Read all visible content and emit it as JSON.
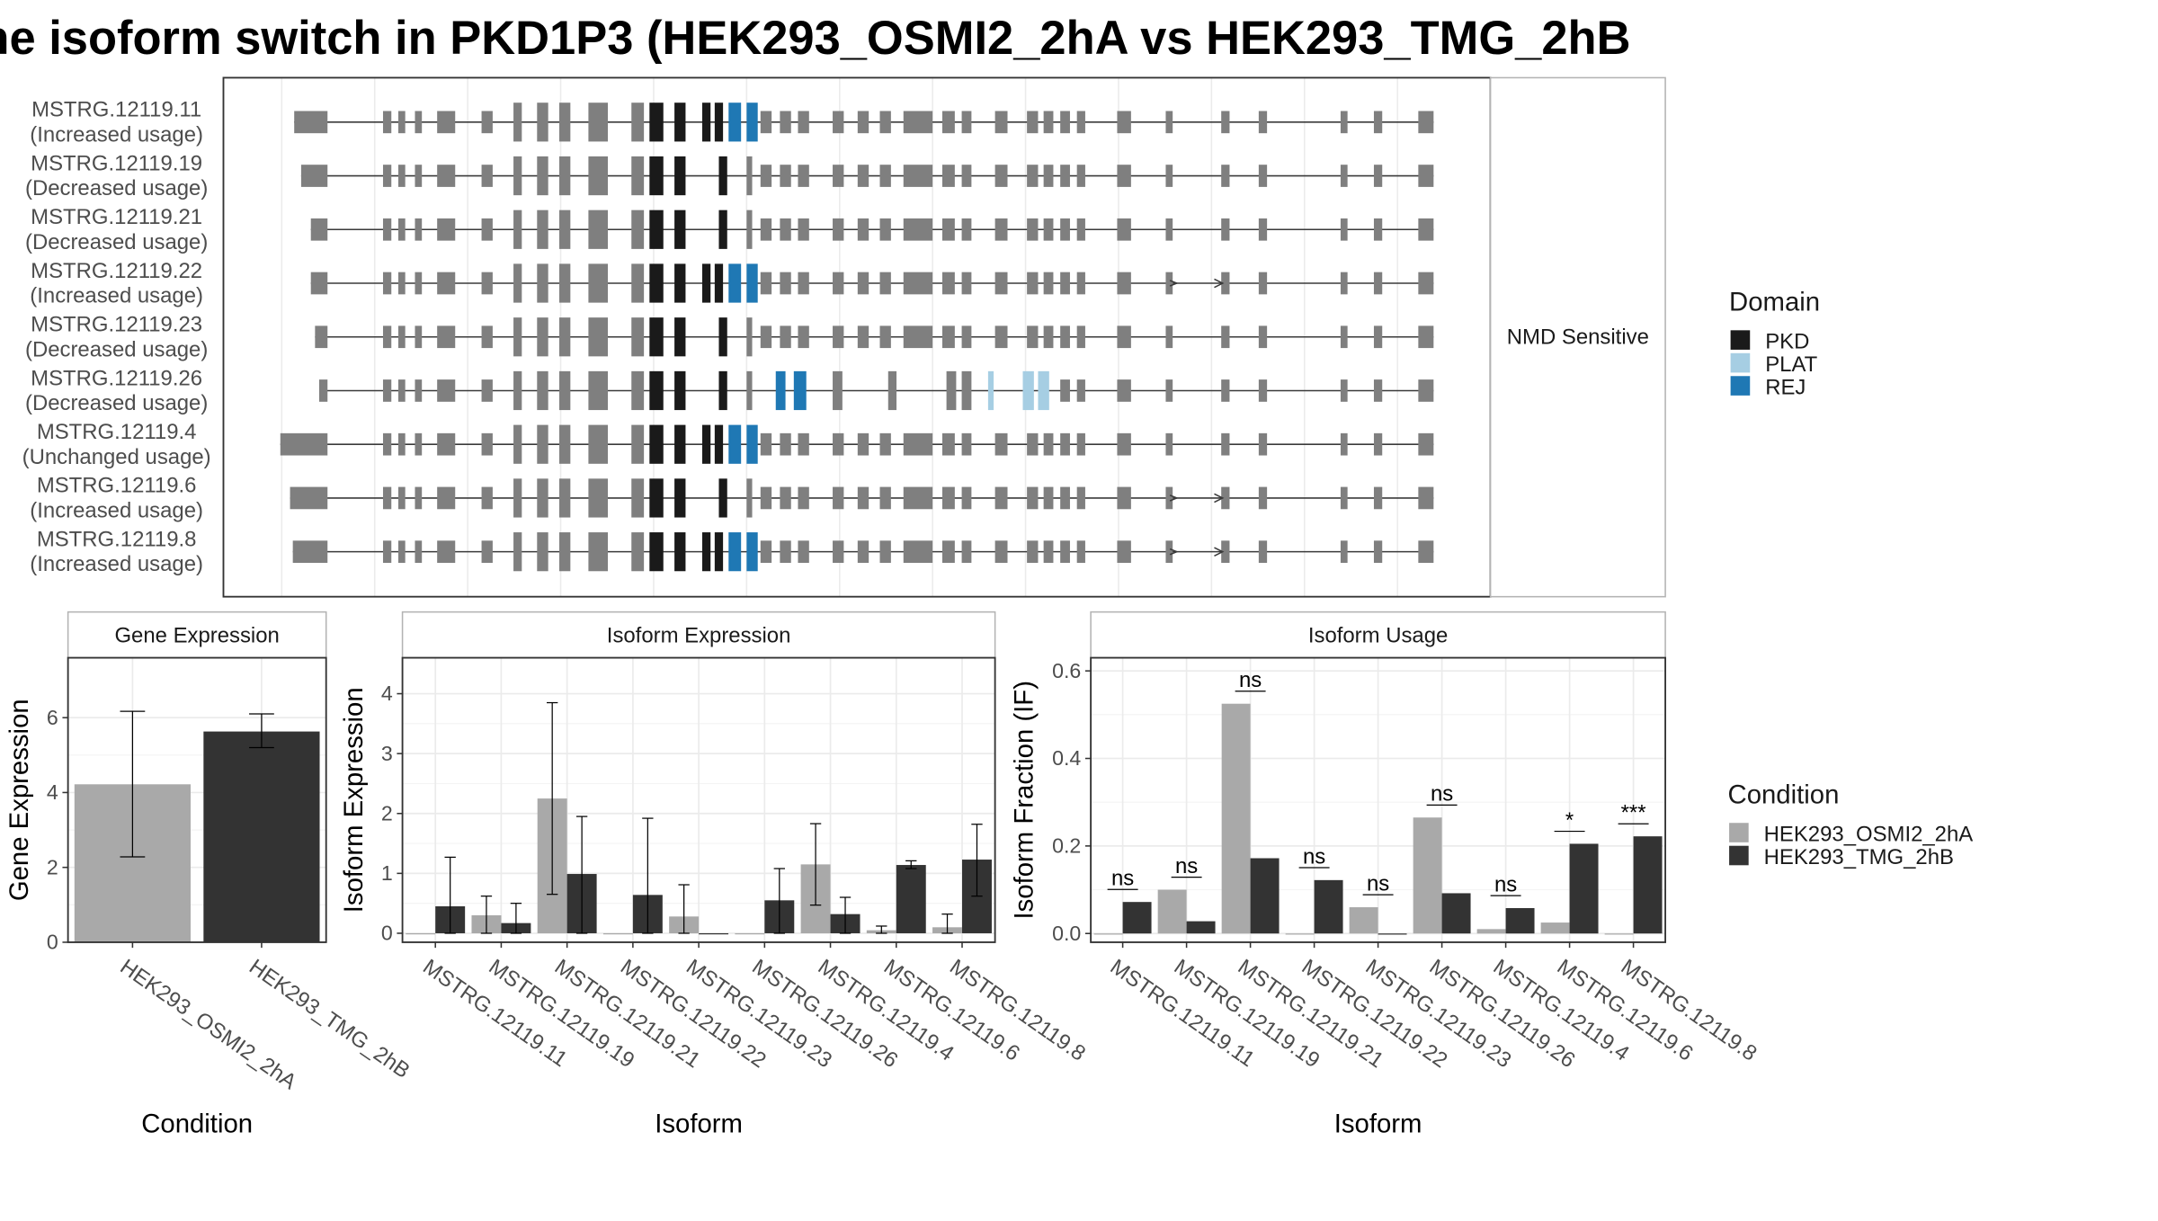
{
  "title": "he isoform switch in PKD1P3 (HEK293_OSMI2_2hA vs HEK293_TMG_2hB",
  "colors": {
    "exon": "#7f7f7f",
    "intron": "#3a3a3a",
    "panel_border": "#333333",
    "strip_border": "#b3b3b3",
    "grid": "#ebebeb",
    "cond_a": "#a9a9a9",
    "cond_b": "#333333",
    "pkd": "#1a1a1a",
    "plat": "#a6cee3",
    "rej": "#1f78b4"
  },
  "structure": {
    "strip_label": "NMD Sensitive",
    "isoforms": [
      {
        "id": "MSTRG.12119.11",
        "usage": "(Increased usage)"
      },
      {
        "id": "MSTRG.12119.19",
        "usage": "(Decreased usage)"
      },
      {
        "id": "MSTRG.12119.21",
        "usage": "(Decreased usage)"
      },
      {
        "id": "MSTRG.12119.22",
        "usage": "(Increased usage)"
      },
      {
        "id": "MSTRG.12119.23",
        "usage": "(Decreased usage)"
      },
      {
        "id": "MSTRG.12119.26",
        "usage": "(Decreased usage)"
      },
      {
        "id": "MSTRG.12119.4",
        "usage": "(Unchanged usage)"
      },
      {
        "id": "MSTRG.12119.6",
        "usage": "(Increased usage)"
      },
      {
        "id": "MSTRG.12119.8",
        "usage": "(Increased usage)"
      }
    ]
  },
  "legends": {
    "domain_title": "Domain",
    "domains": [
      {
        "label": "PKD",
        "color": "#1a1a1a"
      },
      {
        "label": "PLAT",
        "color": "#a6cee3"
      },
      {
        "label": "REJ",
        "color": "#1f78b4"
      }
    ],
    "condition_title": "Condition",
    "conditions": [
      {
        "label": "HEK293_OSMI2_2hA",
        "color": "#a9a9a9"
      },
      {
        "label": "HEK293_TMG_2hB",
        "color": "#333333"
      }
    ]
  },
  "chart_data": [
    {
      "type": "bar",
      "title": "Gene Expression",
      "xlabel": "Condition",
      "ylabel": "Gene Expression",
      "ylim": [
        0,
        7.6
      ],
      "yticks": [
        0,
        2,
        4,
        6
      ],
      "categories": [
        "HEK293_OSMI2_2hA",
        "HEK293_TMG_2hB"
      ],
      "values": [
        4.22,
        5.63
      ],
      "error_low": [
        2.28,
        5.2
      ],
      "error_high": [
        6.17,
        6.1
      ]
    },
    {
      "type": "bar",
      "title": "Isoform Expression",
      "xlabel": "Isoform",
      "ylabel": "Isoform Expression",
      "ylim": [
        -0.15,
        4.6
      ],
      "yticks": [
        0,
        1,
        2,
        3,
        4
      ],
      "categories": [
        "MSTRG.12119.11",
        "MSTRG.12119.19",
        "MSTRG.12119.21",
        "MSTRG.12119.22",
        "MSTRG.12119.23",
        "MSTRG.12119.26",
        "MSTRG.12119.4",
        "MSTRG.12119.6",
        "MSTRG.12119.8"
      ],
      "series": [
        {
          "name": "HEK293_OSMI2_2hA",
          "values": [
            0.0,
            0.3,
            2.25,
            0.0,
            0.28,
            0.0,
            1.15,
            0.05,
            0.1
          ],
          "err_low": [
            0,
            0.0,
            0.65,
            0,
            0.0,
            0,
            0.47,
            0.0,
            0.0
          ],
          "err_high": [
            0,
            0.62,
            3.85,
            0,
            0.81,
            0,
            1.83,
            0.12,
            0.32
          ]
        },
        {
          "name": "HEK293_TMG_2hB",
          "values": [
            0.45,
            0.17,
            0.99,
            0.64,
            0.0,
            0.55,
            0.32,
            1.14,
            1.23
          ],
          "err_low": [
            0.0,
            0.0,
            0.0,
            0.0,
            0,
            0.0,
            0.0,
            1.08,
            0.62
          ],
          "err_high": [
            1.27,
            0.5,
            1.95,
            1.92,
            0,
            1.08,
            0.6,
            1.21,
            1.82
          ]
        }
      ]
    },
    {
      "type": "bar",
      "title": "Isoform Usage",
      "xlabel": "Isoform",
      "ylabel": "Isoform Fraction (IF)",
      "ylim": [
        -0.02,
        0.63
      ],
      "yticks": [
        0.0,
        0.2,
        0.4,
        0.6
      ],
      "categories": [
        "MSTRG.12119.11",
        "MSTRG.12119.19",
        "MSTRG.12119.21",
        "MSTRG.12119.22",
        "MSTRG.12119.23",
        "MSTRG.12119.26",
        "MSTRG.12119.4",
        "MSTRG.12119.6",
        "MSTRG.12119.8"
      ],
      "series": [
        {
          "name": "HEK293_OSMI2_2hA",
          "values": [
            0.0,
            0.1,
            0.525,
            0.0,
            0.06,
            0.265,
            0.01,
            0.025,
            0.0
          ]
        },
        {
          "name": "HEK293_TMG_2hB",
          "values": [
            0.072,
            0.028,
            0.172,
            0.122,
            0.0,
            0.092,
            0.058,
            0.205,
            0.222
          ]
        }
      ],
      "significance": [
        "ns",
        "ns",
        "ns",
        "ns",
        "ns",
        "ns",
        "ns",
        "*",
        "***"
      ]
    }
  ]
}
